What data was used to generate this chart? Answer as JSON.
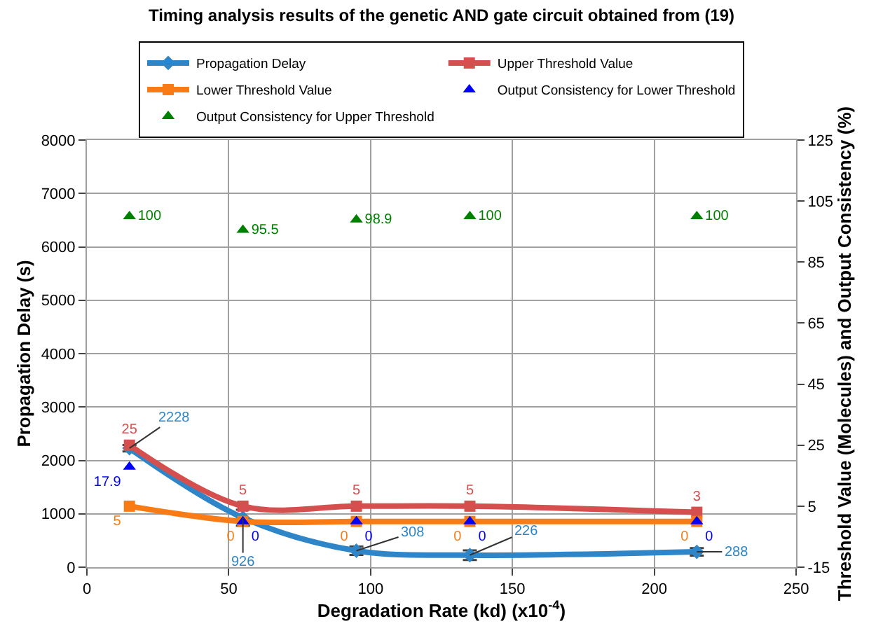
{
  "chart_data": {
    "type": "line",
    "title": "Timing analysis results of the genetic AND gate circuit obtained from (19)",
    "xlabel": "Degradation Rate (kd) (x10$^{-4}$)",
    "ylabel": "Propagation Delay (s)",
    "y2label": "Threshold Value (Molecules) and Output Consistency (%)",
    "x": [
      15,
      55,
      95,
      135,
      215
    ],
    "series": [
      {
        "name": "Propagation Delay",
        "color": "#2e86c8",
        "values": [
          2228,
          926,
          308,
          226,
          288
        ],
        "errors": [
          60,
          150,
          80,
          90,
          70
        ],
        "marker": "diamond"
      },
      {
        "name": "Upper Threshold Value",
        "color": "#d64f4f",
        "values": [
          25,
          5,
          5,
          5,
          3
        ],
        "axis": "y2",
        "marker": "square"
      },
      {
        "name": "Lower Threshold Value",
        "color": "#f97b16",
        "values": [
          5,
          0,
          0,
          0,
          0
        ],
        "axis": "y2",
        "marker": "square"
      },
      {
        "name": "Output Consistency for Lower Threshold",
        "color": "#0000ff",
        "values": [
          17.9,
          0,
          0,
          0,
          0
        ],
        "axis": "y2",
        "type": "scatter",
        "marker": "triangle"
      },
      {
        "name": "Output Consistency for Upper Threshold",
        "color": "#008000",
        "values": [
          100,
          95.5,
          98.9,
          100,
          100
        ],
        "axis": "y2",
        "type": "scatter",
        "marker": "triangle"
      }
    ],
    "xlim": [
      0,
      250
    ],
    "xticks": [
      0,
      50,
      100,
      150,
      200,
      250
    ],
    "ylim": [
      0,
      8000
    ],
    "yticks": [
      0,
      1000,
      2000,
      3000,
      4000,
      5000,
      6000,
      7000,
      8000
    ],
    "y2lim": [
      -15,
      125
    ],
    "y2ticks": [
      -15,
      5,
      25,
      45,
      65,
      85,
      105,
      125
    ],
    "grid": true,
    "legend": "top",
    "data_labels": true
  }
}
